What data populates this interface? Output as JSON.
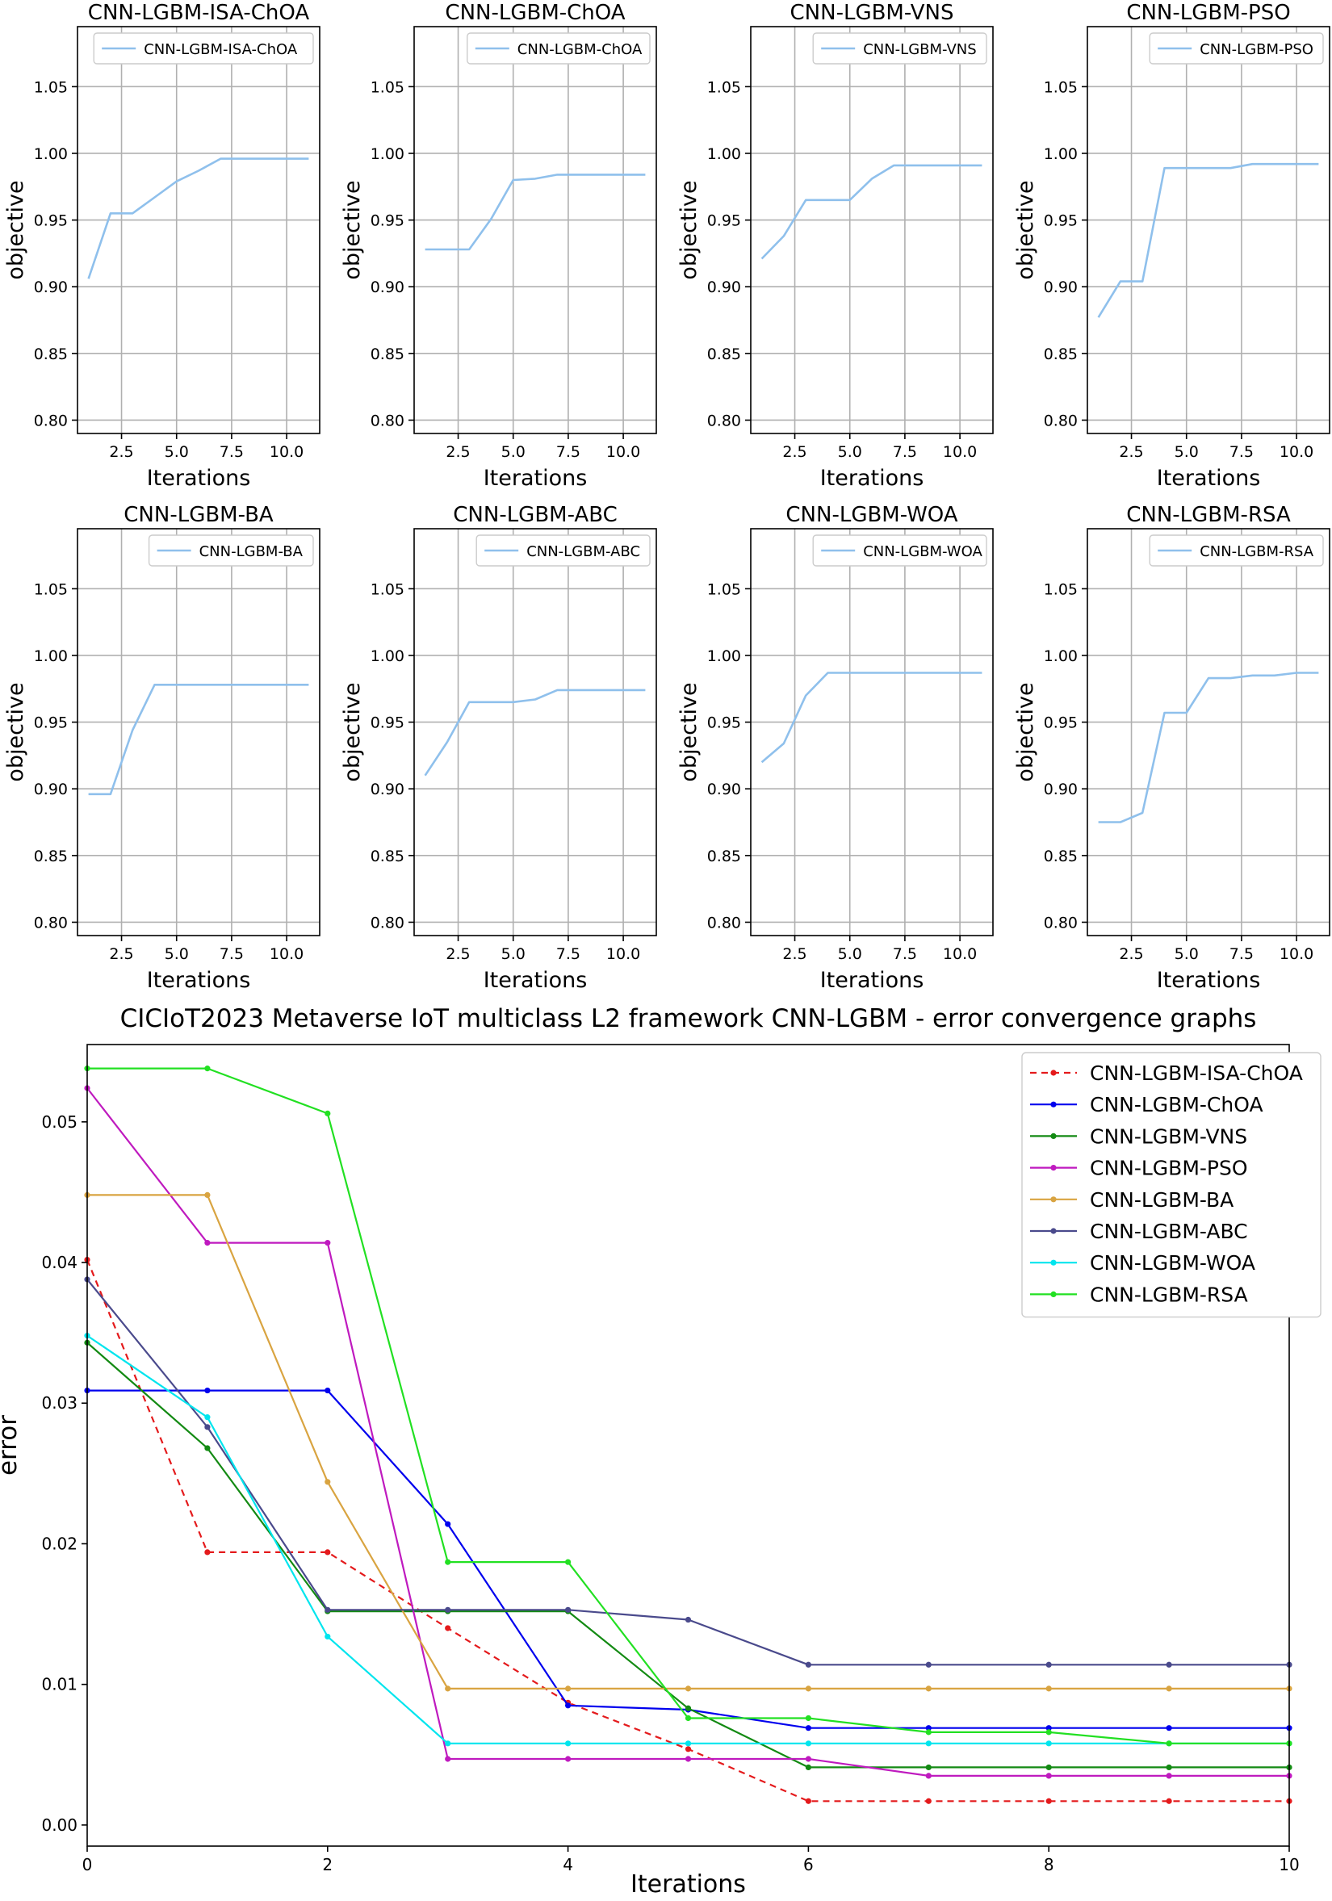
{
  "chart_data": [
    {
      "type": "line",
      "title": "CNN-LGBM-ISA-ChOA",
      "xlabel": "Iterations",
      "ylabel": "objective",
      "xlim": [
        0.5,
        11.5
      ],
      "ylim": [
        0.79,
        1.095
      ],
      "xticks": [
        2.5,
        5.0,
        7.5,
        10.0
      ],
      "xtick_labels": [
        "2.5",
        "5.0",
        "7.5",
        "10.0"
      ],
      "yticks": [
        0.8,
        0.85,
        0.9,
        0.95,
        1.0,
        1.05
      ],
      "ytick_labels": [
        "0.80",
        "0.85",
        "0.90",
        "0.95",
        "1.00",
        "1.05"
      ],
      "grid": true,
      "legend": "top-right",
      "color": "#8fc0ec",
      "series": [
        {
          "name": "CNN-LGBM-ISA-ChOA",
          "x": [
            1,
            2,
            3,
            4,
            5,
            6,
            7,
            8,
            9,
            10,
            11
          ],
          "values": [
            0.906,
            0.955,
            0.955,
            0.967,
            0.979,
            0.987,
            0.996,
            0.996,
            0.996,
            0.996,
            0.996
          ]
        }
      ]
    },
    {
      "type": "line",
      "title": "CNN-LGBM-ChOA",
      "xlabel": "Iterations",
      "ylabel": "objective",
      "xlim": [
        0.5,
        11.5
      ],
      "ylim": [
        0.79,
        1.095
      ],
      "xticks": [
        2.5,
        5.0,
        7.5,
        10.0
      ],
      "xtick_labels": [
        "2.5",
        "5.0",
        "7.5",
        "10.0"
      ],
      "yticks": [
        0.8,
        0.85,
        0.9,
        0.95,
        1.0,
        1.05
      ],
      "ytick_labels": [
        "0.80",
        "0.85",
        "0.90",
        "0.95",
        "1.00",
        "1.05"
      ],
      "grid": true,
      "legend": "top-right",
      "color": "#8fc0ec",
      "series": [
        {
          "name": "CNN-LGBM-ChOA",
          "x": [
            1,
            2,
            3,
            4,
            5,
            6,
            7,
            8,
            9,
            10,
            11
          ],
          "values": [
            0.928,
            0.928,
            0.928,
            0.951,
            0.98,
            0.981,
            0.984,
            0.984,
            0.984,
            0.984,
            0.984
          ]
        }
      ]
    },
    {
      "type": "line",
      "title": "CNN-LGBM-VNS",
      "xlabel": "Iterations",
      "ylabel": "objective",
      "xlim": [
        0.5,
        11.5
      ],
      "ylim": [
        0.79,
        1.095
      ],
      "xticks": [
        2.5,
        5.0,
        7.5,
        10.0
      ],
      "xtick_labels": [
        "2.5",
        "5.0",
        "7.5",
        "10.0"
      ],
      "yticks": [
        0.8,
        0.85,
        0.9,
        0.95,
        1.0,
        1.05
      ],
      "ytick_labels": [
        "0.80",
        "0.85",
        "0.90",
        "0.95",
        "1.00",
        "1.05"
      ],
      "grid": true,
      "legend": "top-right",
      "color": "#8fc0ec",
      "series": [
        {
          "name": "CNN-LGBM-VNS",
          "x": [
            1,
            2,
            3,
            4,
            5,
            6,
            7,
            8,
            9,
            10,
            11
          ],
          "values": [
            0.921,
            0.938,
            0.965,
            0.965,
            0.965,
            0.981,
            0.991,
            0.991,
            0.991,
            0.991,
            0.991
          ]
        }
      ]
    },
    {
      "type": "line",
      "title": "CNN-LGBM-PSO",
      "xlabel": "Iterations",
      "ylabel": "objective",
      "xlim": [
        0.5,
        11.5
      ],
      "ylim": [
        0.79,
        1.095
      ],
      "xticks": [
        2.5,
        5.0,
        7.5,
        10.0
      ],
      "xtick_labels": [
        "2.5",
        "5.0",
        "7.5",
        "10.0"
      ],
      "yticks": [
        0.8,
        0.85,
        0.9,
        0.95,
        1.0,
        1.05
      ],
      "ytick_labels": [
        "0.80",
        "0.85",
        "0.90",
        "0.95",
        "1.00",
        "1.05"
      ],
      "grid": true,
      "legend": "top-right",
      "color": "#8fc0ec",
      "series": [
        {
          "name": "CNN-LGBM-PSO",
          "x": [
            1,
            2,
            3,
            4,
            5,
            6,
            7,
            8,
            9,
            10,
            11
          ],
          "values": [
            0.877,
            0.904,
            0.904,
            0.989,
            0.989,
            0.989,
            0.989,
            0.992,
            0.992,
            0.992,
            0.992
          ]
        }
      ]
    },
    {
      "type": "line",
      "title": "CNN-LGBM-BA",
      "xlabel": "Iterations",
      "ylabel": "objective",
      "xlim": [
        0.5,
        11.5
      ],
      "ylim": [
        0.79,
        1.095
      ],
      "xticks": [
        2.5,
        5.0,
        7.5,
        10.0
      ],
      "xtick_labels": [
        "2.5",
        "5.0",
        "7.5",
        "10.0"
      ],
      "yticks": [
        0.8,
        0.85,
        0.9,
        0.95,
        1.0,
        1.05
      ],
      "ytick_labels": [
        "0.80",
        "0.85",
        "0.90",
        "0.95",
        "1.00",
        "1.05"
      ],
      "grid": true,
      "legend": "top-right",
      "color": "#8fc0ec",
      "series": [
        {
          "name": "CNN-LGBM-BA",
          "x": [
            1,
            2,
            3,
            4,
            5,
            6,
            7,
            8,
            9,
            10,
            11
          ],
          "values": [
            0.896,
            0.896,
            0.944,
            0.978,
            0.978,
            0.978,
            0.978,
            0.978,
            0.978,
            0.978,
            0.978
          ]
        }
      ]
    },
    {
      "type": "line",
      "title": "CNN-LGBM-ABC",
      "xlabel": "Iterations",
      "ylabel": "objective",
      "xlim": [
        0.5,
        11.5
      ],
      "ylim": [
        0.79,
        1.095
      ],
      "xticks": [
        2.5,
        5.0,
        7.5,
        10.0
      ],
      "xtick_labels": [
        "2.5",
        "5.0",
        "7.5",
        "10.0"
      ],
      "yticks": [
        0.8,
        0.85,
        0.9,
        0.95,
        1.0,
        1.05
      ],
      "ytick_labels": [
        "0.80",
        "0.85",
        "0.90",
        "0.95",
        "1.00",
        "1.05"
      ],
      "grid": true,
      "legend": "top-right",
      "color": "#8fc0ec",
      "series": [
        {
          "name": "CNN-LGBM-ABC",
          "x": [
            1,
            2,
            3,
            4,
            5,
            6,
            7,
            8,
            9,
            10,
            11
          ],
          "values": [
            0.91,
            0.935,
            0.965,
            0.965,
            0.965,
            0.967,
            0.974,
            0.974,
            0.974,
            0.974,
            0.974
          ]
        }
      ]
    },
    {
      "type": "line",
      "title": "CNN-LGBM-WOA",
      "xlabel": "Iterations",
      "ylabel": "objective",
      "xlim": [
        0.5,
        11.5
      ],
      "ylim": [
        0.79,
        1.095
      ],
      "xticks": [
        2.5,
        5.0,
        7.5,
        10.0
      ],
      "xtick_labels": [
        "2.5",
        "5.0",
        "7.5",
        "10.0"
      ],
      "yticks": [
        0.8,
        0.85,
        0.9,
        0.95,
        1.0,
        1.05
      ],
      "ytick_labels": [
        "0.80",
        "0.85",
        "0.90",
        "0.95",
        "1.00",
        "1.05"
      ],
      "grid": true,
      "legend": "top-right",
      "color": "#8fc0ec",
      "series": [
        {
          "name": "CNN-LGBM-WOA",
          "x": [
            1,
            2,
            3,
            4,
            5,
            6,
            7,
            8,
            9,
            10,
            11
          ],
          "values": [
            0.92,
            0.934,
            0.97,
            0.987,
            0.987,
            0.987,
            0.987,
            0.987,
            0.987,
            0.987,
            0.987
          ]
        }
      ]
    },
    {
      "type": "line",
      "title": "CNN-LGBM-RSA",
      "xlabel": "Iterations",
      "ylabel": "objective",
      "xlim": [
        0.5,
        11.5
      ],
      "ylim": [
        0.79,
        1.095
      ],
      "xticks": [
        2.5,
        5.0,
        7.5,
        10.0
      ],
      "xtick_labels": [
        "2.5",
        "5.0",
        "7.5",
        "10.0"
      ],
      "yticks": [
        0.8,
        0.85,
        0.9,
        0.95,
        1.0,
        1.05
      ],
      "ytick_labels": [
        "0.80",
        "0.85",
        "0.90",
        "0.95",
        "1.00",
        "1.05"
      ],
      "grid": true,
      "legend": "top-right",
      "color": "#8fc0ec",
      "series": [
        {
          "name": "CNN-LGBM-RSA",
          "x": [
            1,
            2,
            3,
            4,
            5,
            6,
            7,
            8,
            9,
            10,
            11
          ],
          "values": [
            0.875,
            0.875,
            0.882,
            0.957,
            0.957,
            0.983,
            0.983,
            0.985,
            0.985,
            0.987,
            0.987
          ]
        }
      ]
    },
    {
      "type": "line",
      "title": "CICIoT2023 Metaverse IoT multiclass L2 framework CNN-LGBM -  error convergence graphs",
      "xlabel": "Iterations",
      "ylabel": "error",
      "xlim": [
        0,
        10
      ],
      "ylim": [
        -0.0015,
        0.0555
      ],
      "xticks": [
        0,
        2,
        4,
        6,
        8,
        10
      ],
      "xtick_labels": [
        "0",
        "2",
        "4",
        "6",
        "8",
        "10"
      ],
      "yticks": [
        0.0,
        0.01,
        0.02,
        0.03,
        0.04,
        0.05
      ],
      "ytick_labels": [
        "0.00",
        "0.01",
        "0.02",
        "0.03",
        "0.04",
        "0.05"
      ],
      "grid": false,
      "legend": "top-right",
      "x": [
        0,
        1,
        2,
        3,
        4,
        5,
        6,
        7,
        8,
        9,
        10
      ],
      "series": [
        {
          "name": "CNN-LGBM-ISA-ChOA",
          "color": "#e41a1c",
          "dashed": true,
          "values": [
            0.0402,
            0.0194,
            0.0194,
            0.014,
            0.0087,
            0.0054,
            0.0017,
            0.0017,
            0.0017,
            0.0017,
            0.0017
          ]
        },
        {
          "name": "CNN-LGBM-ChOA",
          "color": "#0000ee",
          "dashed": false,
          "values": [
            0.0309,
            0.0309,
            0.0309,
            0.0214,
            0.0085,
            0.0082,
            0.0069,
            0.0069,
            0.0069,
            0.0069,
            0.0069
          ]
        },
        {
          "name": "CNN-LGBM-VNS",
          "color": "#138a13",
          "dashed": false,
          "values": [
            0.0343,
            0.0268,
            0.0152,
            0.0152,
            0.0152,
            0.0083,
            0.0041,
            0.0041,
            0.0041,
            0.0041,
            0.0041
          ]
        },
        {
          "name": "CNN-LGBM-PSO",
          "color": "#bf1abf",
          "dashed": false,
          "values": [
            0.0524,
            0.0414,
            0.0414,
            0.0047,
            0.0047,
            0.0047,
            0.0047,
            0.0035,
            0.0035,
            0.0035,
            0.0035
          ]
        },
        {
          "name": "CNN-LGBM-BA",
          "color": "#d9a441",
          "dashed": false,
          "values": [
            0.0448,
            0.0448,
            0.0244,
            0.0097,
            0.0097,
            0.0097,
            0.0097,
            0.0097,
            0.0097,
            0.0097,
            0.0097
          ]
        },
        {
          "name": "CNN-LGBM-ABC",
          "color": "#4a4a8c",
          "dashed": false,
          "values": [
            0.0388,
            0.0283,
            0.0153,
            0.0153,
            0.0153,
            0.0146,
            0.0114,
            0.0114,
            0.0114,
            0.0114,
            0.0114
          ]
        },
        {
          "name": "CNN-LGBM-WOA",
          "color": "#00e5ee",
          "dashed": false,
          "values": [
            0.0348,
            0.029,
            0.0134,
            0.0058,
            0.0058,
            0.0058,
            0.0058,
            0.0058,
            0.0058,
            0.0058,
            0.0058
          ]
        },
        {
          "name": "CNN-LGBM-RSA",
          "color": "#22e022",
          "dashed": false,
          "values": [
            0.0538,
            0.0538,
            0.0506,
            0.0187,
            0.0187,
            0.0076,
            0.0076,
            0.0066,
            0.0066,
            0.0058,
            0.0058
          ]
        }
      ]
    }
  ]
}
